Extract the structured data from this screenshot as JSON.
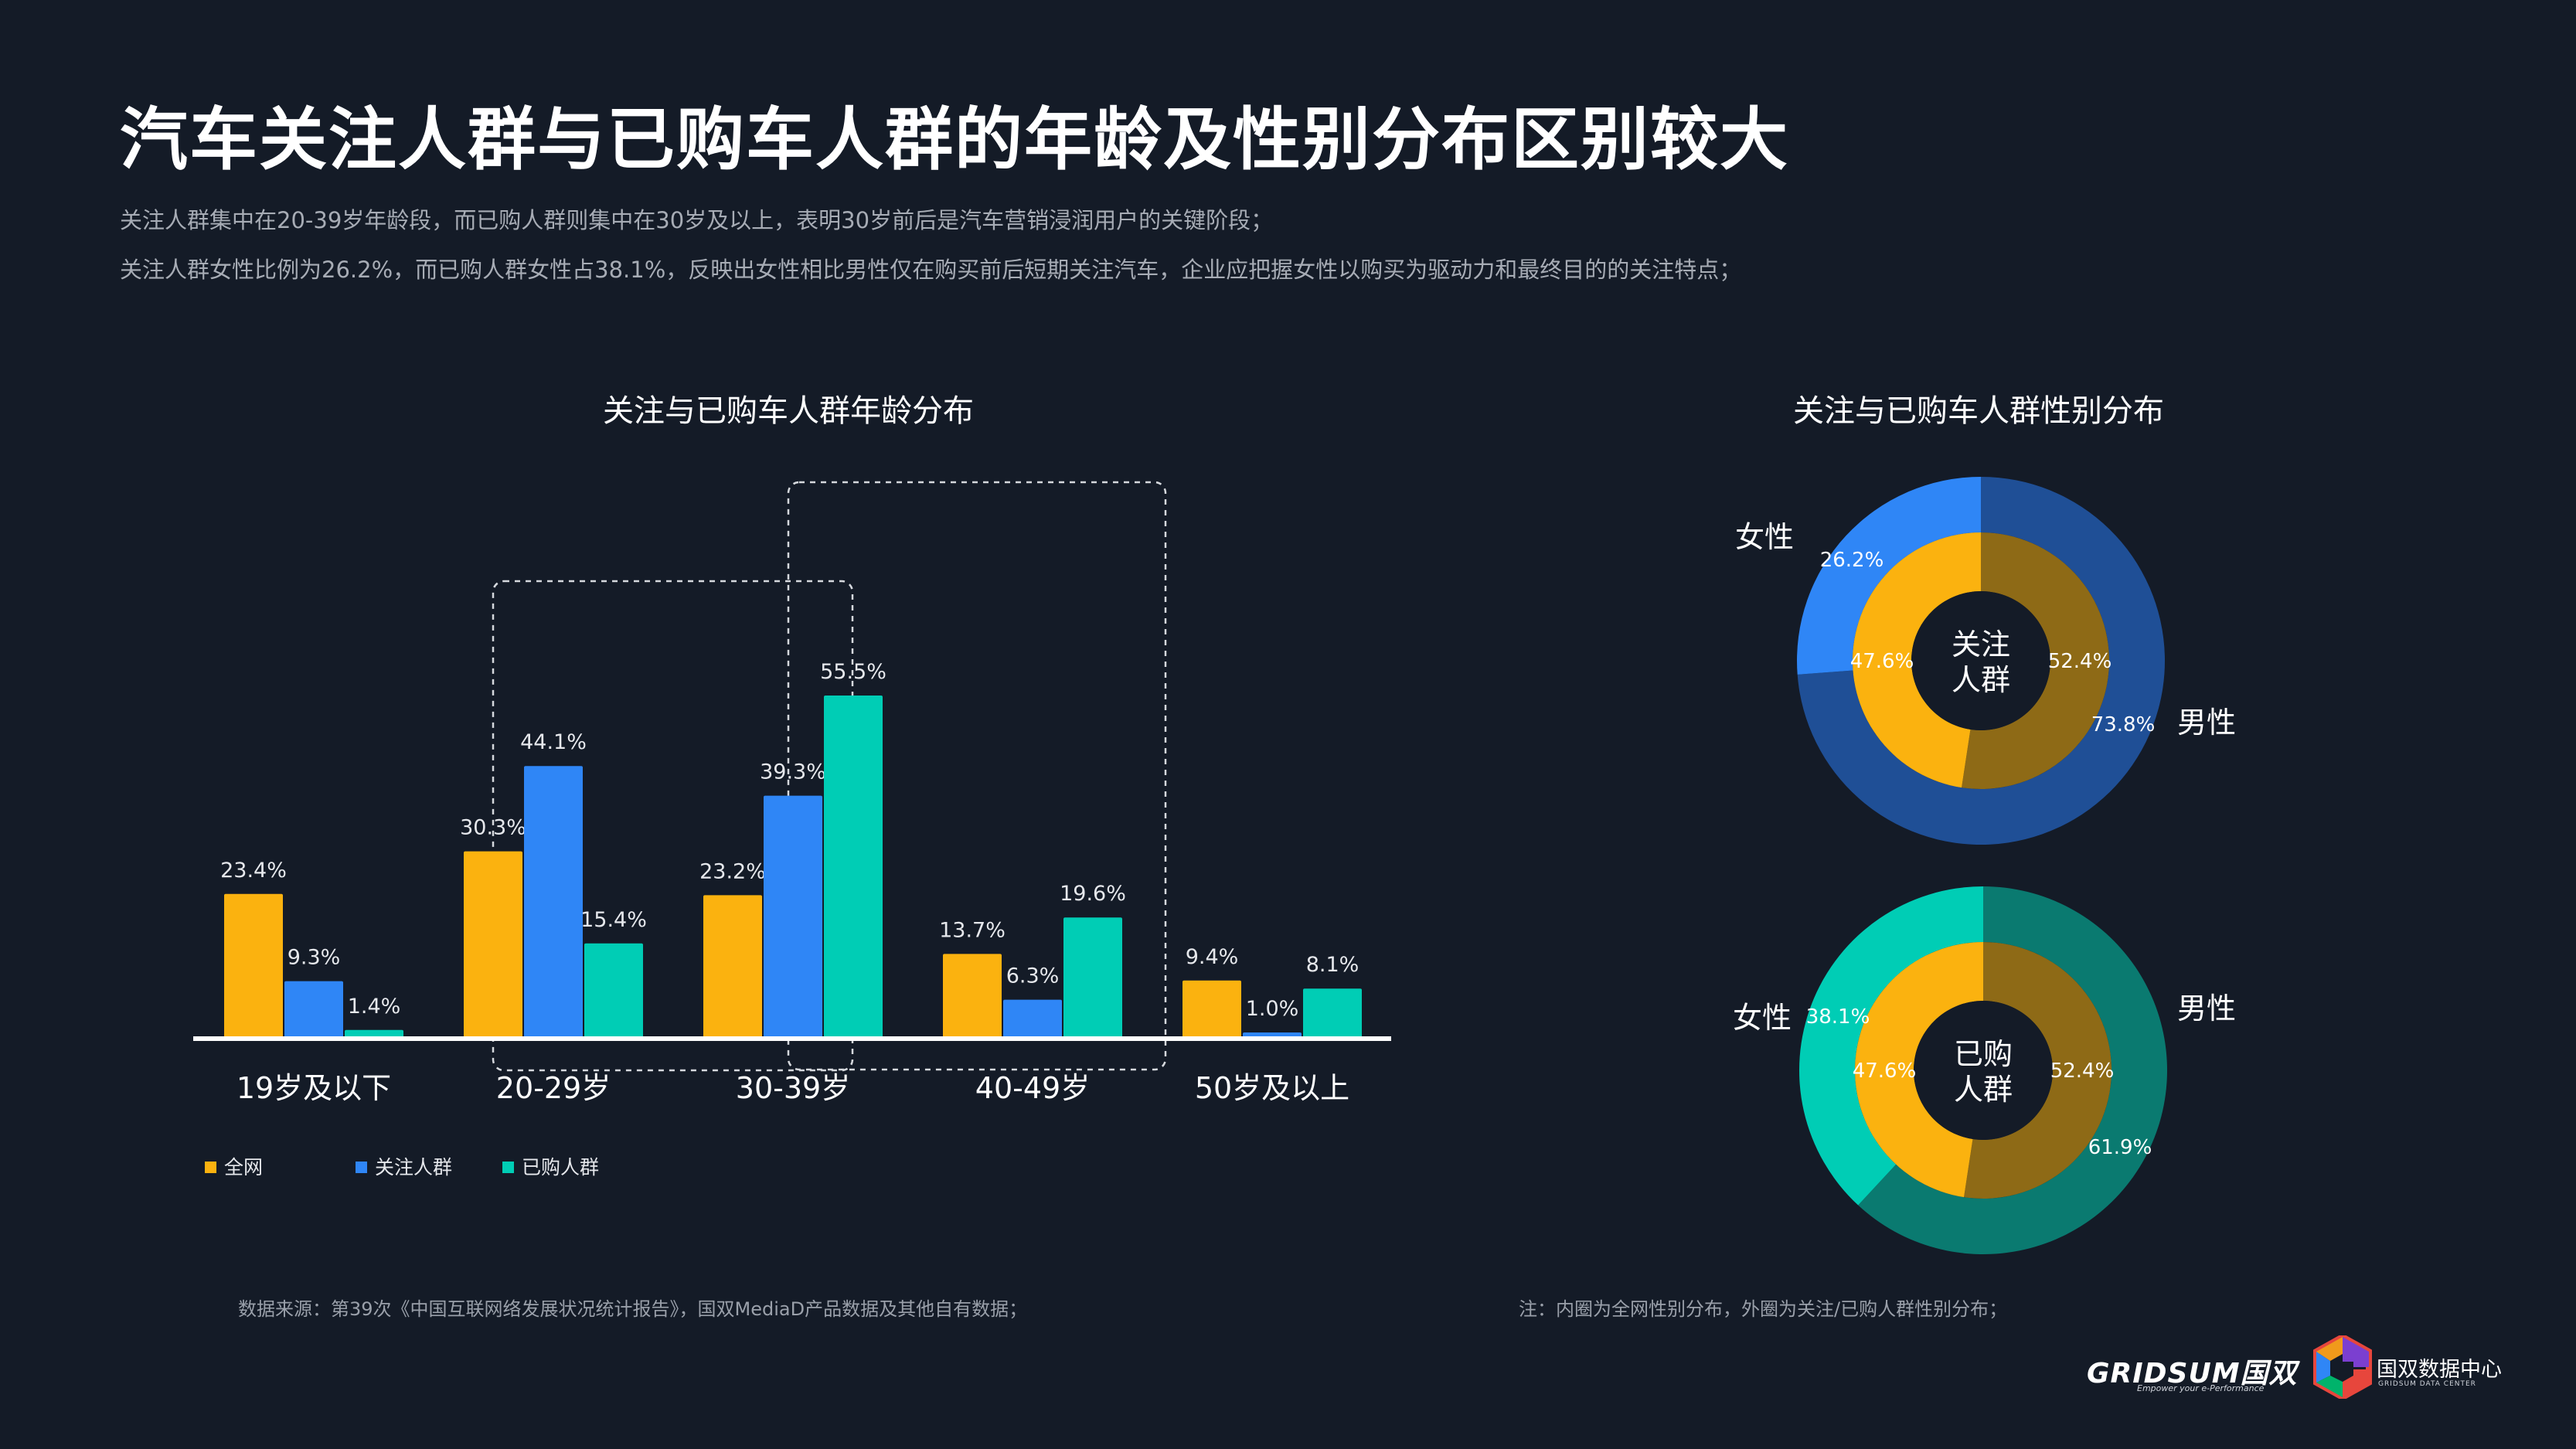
{
  "page": {
    "title": "汽车关注人群与已购车人群的年龄及性别分布区别较大",
    "subtitle_line1": "关注人群集中在20-39岁年龄段，而已购人群则集中在30岁及以上，表明30岁前后是汽车营销浸润用户的关键阶段；",
    "subtitle_line2": "关注人群女性比例为26.2%，而已购人群女性占38.1%，反映出女性相比男性仅在购买前后短期关注汽车，企业应把握女性以购买为驱动力和最终目的的关注特点；",
    "source_note": "数据来源：第39次《中国互联网络发展状况统计报告》，国双MediaD产品数据及其他自有数据；",
    "donut_note": "注：内圈为全网性别分布，外圈为关注/已购人群性别分布；",
    "logo_gridsum": "GRIDSUM国双",
    "logo_gridsum_tagline": "Empower your e-Performance",
    "logo_center": "国双数据中心",
    "logo_center_sub": "GRIDSUM DATA CENTER"
  },
  "colors": {
    "all_net": "#fbb20f",
    "follow": "#2f86f6",
    "bought": "#00cdb5",
    "follow_outer_male": "#1f4f96",
    "bought_outer_male": "#0a7a70",
    "inner_male": "#8e6a16",
    "center_bg": "#141b27"
  },
  "chart_data": [
    {
      "type": "bar",
      "title": "关注与已购车人群年龄分布",
      "categories": [
        "19岁及以下",
        "20-29岁",
        "30-39岁",
        "40-49岁",
        "50岁及以上"
      ],
      "series": [
        {
          "name": "全网",
          "values": [
            23.4,
            30.3,
            23.2,
            13.7,
            9.4
          ],
          "labels": [
            "23.4%",
            "30.3%",
            "23.2%",
            "13.7%",
            "9.4%"
          ]
        },
        {
          "name": "关注人群",
          "values": [
            9.3,
            44.1,
            39.3,
            6.3,
            1.0
          ],
          "labels": [
            "9.3%",
            "44.1%",
            "39.3%",
            "6.3%",
            "1.0%"
          ]
        },
        {
          "name": "已购人群",
          "values": [
            1.4,
            15.4,
            55.5,
            19.6,
            8.1
          ],
          "labels": [
            "1.4%",
            "15.4%",
            "55.5%",
            "19.6%",
            "8.1%"
          ]
        }
      ],
      "legend": "bottom-left",
      "grid": false,
      "highlighted_groups": [
        "20-29岁",
        "30-39岁"
      ]
    },
    {
      "type": "pie",
      "title": "关注与已购车人群性别分布",
      "center_label_line1": "关注",
      "center_label_line2": "人群",
      "inner": {
        "slices": [
          {
            "name": "女性",
            "value": 47.6,
            "label": "47.6%"
          },
          {
            "name": "男性",
            "value": 52.4,
            "label": "52.4%"
          }
        ]
      },
      "outer": {
        "slices": [
          {
            "name": "女性",
            "value": 26.2,
            "label": "26.2%"
          },
          {
            "name": "男性",
            "value": 73.8,
            "label": "73.8%"
          }
        ]
      },
      "female_label": "女性",
      "male_label": "男性"
    },
    {
      "type": "pie",
      "center_label_line1": "已购",
      "center_label_line2": "人群",
      "inner": {
        "slices": [
          {
            "name": "女性",
            "value": 47.6,
            "label": "47.6%"
          },
          {
            "name": "男性",
            "value": 52.4,
            "label": "52.4%"
          }
        ]
      },
      "outer": {
        "slices": [
          {
            "name": "女性",
            "value": 38.1,
            "label": "38.1%"
          },
          {
            "name": "男性",
            "value": 61.9,
            "label": "61.9%"
          }
        ]
      },
      "female_label": "女性",
      "male_label": "男性"
    }
  ]
}
